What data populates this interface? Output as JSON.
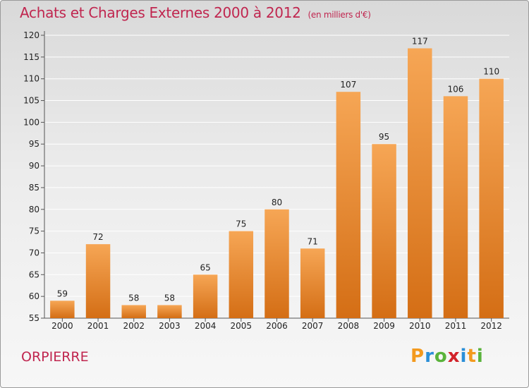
{
  "header": {
    "title": "Achats et Charges Externes 2000 à 2012",
    "unit": "(en milliers d'€)"
  },
  "footer": {
    "place": "ORPIERRE",
    "logo_letters": [
      "P",
      "r",
      "o",
      "x",
      "i",
      "t",
      "i"
    ],
    "logo_colors": [
      "#f39a1e",
      "#2a8fd8",
      "#5ab33b",
      "#d2232a",
      "#2a8fd8",
      "#f39a1e",
      "#5ab33b"
    ]
  },
  "colors": {
    "title": "#c0264f",
    "bar_top": "#f6a655",
    "bar_bottom": "#d46e15"
  },
  "chart_data": {
    "type": "bar",
    "categories": [
      "2000",
      "2001",
      "2002",
      "2003",
      "2004",
      "2005",
      "2006",
      "2007",
      "2008",
      "2009",
      "2010",
      "2011",
      "2012"
    ],
    "values": [
      59,
      72,
      58,
      58,
      65,
      75,
      80,
      71,
      107,
      95,
      117,
      106,
      110
    ],
    "ylim": [
      55,
      120
    ],
    "yticks": [
      55,
      60,
      65,
      70,
      75,
      80,
      85,
      90,
      95,
      100,
      105,
      110,
      115,
      120
    ],
    "grid": true,
    "title": "Achats et Charges Externes 2000 à 2012",
    "xlabel": "",
    "ylabel": ""
  }
}
